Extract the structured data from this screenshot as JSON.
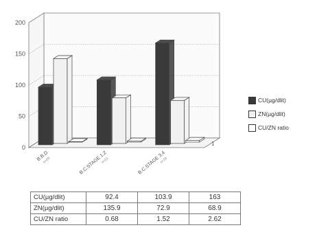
{
  "chart_data": {
    "type": "bar",
    "title": "",
    "xlabel": "",
    "ylabel": "",
    "ylim": [
      0,
      200
    ],
    "yticks": [
      0,
      50,
      100,
      150,
      200
    ],
    "grid": true,
    "legend_position": "right",
    "categories": [
      {
        "label": "B.B.D",
        "sub": "n=20"
      },
      {
        "label": "B.C.STAGE 1,2",
        "sub": "n=21"
      },
      {
        "label": "B.C.STAGE 3,4",
        "sub": "n=19"
      }
    ],
    "series": [
      {
        "name": "CU(µg/dlit)",
        "color": "#3a3a3a",
        "values": [
          92.4,
          103.9,
          163
        ]
      },
      {
        "name": "ZN(µg/dlit)",
        "color": "#f1f1f1",
        "values": [
          135.9,
          72.9,
          68.9
        ]
      },
      {
        "name": "CU/ZN ratio",
        "color": "#ffffff",
        "values": [
          0.68,
          1.52,
          2.62
        ]
      }
    ],
    "table": {
      "rows": [
        {
          "label": "CU(µg/dlit)",
          "values": [
            "92.4",
            "103.9",
            "163"
          ]
        },
        {
          "label": "ZN(µg/dlit)",
          "values": [
            "135.9",
            "72.9",
            "68.9"
          ]
        },
        {
          "label": "CU/ZN ratio",
          "values": [
            "0.68",
            "1.52",
            "2.62"
          ]
        }
      ]
    }
  }
}
